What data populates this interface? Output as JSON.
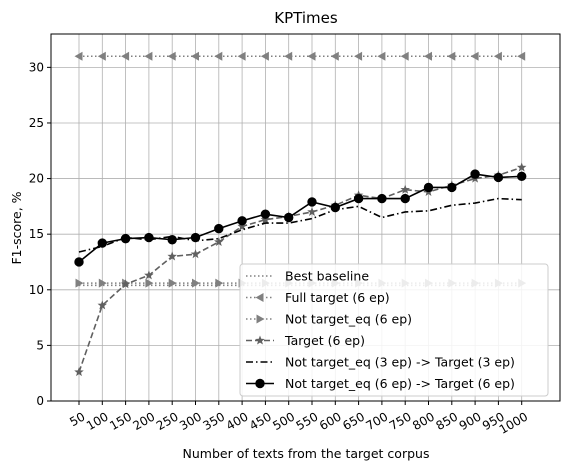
{
  "chart_data": {
    "type": "line",
    "title": "KPTimes",
    "xlabel": "Number of texts from the target corpus",
    "ylabel": "F1-score, %",
    "categories": [
      "50",
      "100",
      "150",
      "200",
      "250",
      "300",
      "350",
      "400",
      "450",
      "500",
      "550",
      "600",
      "650",
      "700",
      "750",
      "800",
      "850",
      "900",
      "950",
      "1000"
    ],
    "ylim": [
      0,
      33
    ],
    "yticks": [
      0,
      5,
      10,
      15,
      20,
      25,
      30
    ],
    "grid": true,
    "legend_position": "lower-right",
    "series": [
      {
        "name": "Best baseline",
        "style": "dotted",
        "marker": "none",
        "color": "#808080",
        "values": [
          10.4,
          10.4,
          10.4,
          10.4,
          10.4,
          10.4,
          10.4,
          10.4,
          10.4,
          10.4,
          10.4,
          10.4,
          10.4,
          10.4,
          10.4,
          10.4,
          10.4,
          10.4,
          10.4,
          10.4
        ]
      },
      {
        "name": "Full target (6 ep)",
        "style": "dotted",
        "marker": "triangle-left",
        "color": "#808080",
        "values": [
          31.0,
          31.0,
          31.0,
          31.0,
          31.0,
          31.0,
          31.0,
          31.0,
          31.0,
          31.0,
          31.0,
          31.0,
          31.0,
          31.0,
          31.0,
          31.0,
          31.0,
          31.0,
          31.0,
          31.0
        ]
      },
      {
        "name": "Not target_eq (6 ep)",
        "style": "dotted",
        "marker": "triangle-right",
        "color": "#808080",
        "values": [
          10.6,
          10.6,
          10.6,
          10.6,
          10.6,
          10.6,
          10.6,
          10.6,
          10.6,
          10.6,
          10.6,
          10.6,
          10.6,
          10.6,
          10.6,
          10.6,
          10.6,
          10.6,
          10.6,
          10.6
        ]
      },
      {
        "name": "Target (6 ep)",
        "style": "dashed",
        "marker": "star",
        "color": "#606060",
        "values": [
          2.6,
          8.6,
          10.5,
          11.3,
          13.0,
          13.2,
          14.3,
          15.7,
          16.3,
          16.6,
          17.0,
          17.6,
          18.5,
          18.2,
          19.0,
          18.8,
          19.4,
          20.0,
          20.3,
          21.0
        ]
      },
      {
        "name": "Not target_eq (3 ep) -> Target (3 ep)",
        "style": "dashdot",
        "marker": "none",
        "color": "#000000",
        "values": [
          13.4,
          13.9,
          14.7,
          14.5,
          14.8,
          14.4,
          14.6,
          15.4,
          16.0,
          16.0,
          16.4,
          17.2,
          17.5,
          16.5,
          17.0,
          17.1,
          17.6,
          17.8,
          18.2,
          18.1
        ]
      },
      {
        "name": "Not target_eq (6 ep) -> Target (6 ep)",
        "style": "solid",
        "marker": "circle",
        "color": "#000000",
        "values": [
          12.5,
          14.2,
          14.6,
          14.7,
          14.5,
          14.7,
          15.5,
          16.2,
          16.8,
          16.5,
          17.9,
          17.4,
          18.2,
          18.2,
          18.2,
          19.2,
          19.2,
          20.4,
          20.1,
          20.2
        ]
      }
    ]
  }
}
